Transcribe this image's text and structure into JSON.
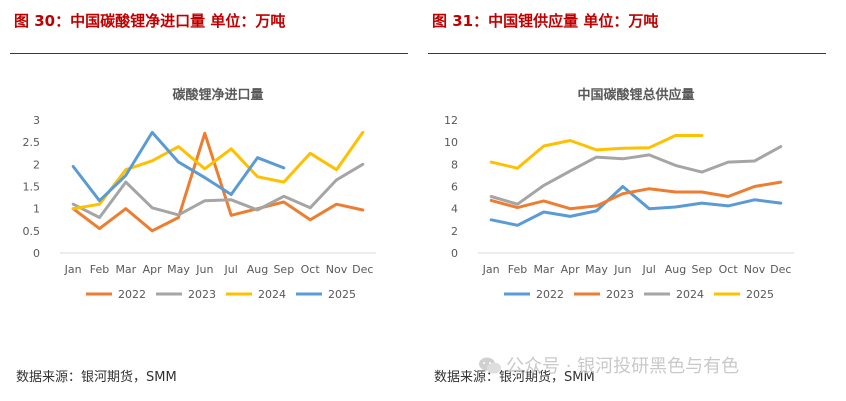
{
  "figures": {
    "left": {
      "title": "图 30：中国碳酸锂净进口量    单位：万吨",
      "source": "数据来源：银河期货，SMM"
    },
    "right": {
      "title": "图 31：中国锂供应量    单位：万吨",
      "source": "数据来源：银河期货，SMM"
    }
  },
  "watermark": {
    "text": "公众号 · 银河投研黑色与有色",
    "icon": "wechat-icon"
  },
  "colors": {
    "2022": "#5b9bd5",
    "2023": "#ed7d31",
    "2024": "#a5a5a5",
    "2025": "#ffc000",
    "title_red": "#c00000"
  },
  "chart_data": [
    {
      "type": "line",
      "title": "碳酸锂净进口量",
      "categories": [
        "Jan",
        "Feb",
        "Mar",
        "Apr",
        "May",
        "Jun",
        "Jul",
        "Aug",
        "Sep",
        "Oct",
        "Nov",
        "Dec"
      ],
      "ylim": [
        0,
        3
      ],
      "yticks": [
        "0",
        "0.5",
        "1",
        "1.5",
        "2",
        "2.5",
        "3"
      ],
      "legend_position": "bottom",
      "series": [
        {
          "name": "2022",
          "color": "#ed7d31",
          "values": [
            1.0,
            0.55,
            1.0,
            0.5,
            0.8,
            2.7,
            0.85,
            1.0,
            1.15,
            0.75,
            1.1,
            0.97
          ]
        },
        {
          "name": "2023",
          "color": "#a5a5a5",
          "values": [
            1.1,
            0.8,
            1.6,
            1.02,
            0.86,
            1.18,
            1.2,
            0.97,
            1.28,
            1.02,
            1.65,
            2.0
          ]
        },
        {
          "name": "2024",
          "color": "#ffc000",
          "values": [
            1.0,
            1.1,
            1.88,
            2.08,
            2.4,
            1.9,
            2.35,
            1.72,
            1.6,
            2.25,
            1.88,
            2.72
          ]
        },
        {
          "name": "2025",
          "color": "#5b9bd5",
          "values": [
            1.95,
            1.18,
            1.75,
            2.72,
            2.05,
            1.7,
            1.32,
            2.15,
            1.92,
            null,
            null,
            null
          ]
        }
      ]
    },
    {
      "type": "line",
      "title": "中国碳酸锂总供应量",
      "categories": [
        "Jan",
        "Feb",
        "Mar",
        "Apr",
        "May",
        "Jun",
        "Jul",
        "Aug",
        "Sep",
        "Oct",
        "Nov",
        "Dec"
      ],
      "ylim": [
        0,
        12
      ],
      "yticks": [
        "0",
        "2",
        "4",
        "6",
        "8",
        "10",
        "12"
      ],
      "legend_position": "bottom",
      "series": [
        {
          "name": "2022",
          "color": "#5b9bd5",
          "values": [
            3.0,
            2.5,
            3.7,
            3.3,
            3.8,
            6.0,
            4.0,
            4.15,
            4.5,
            4.25,
            4.8,
            4.5
          ]
        },
        {
          "name": "2023",
          "color": "#ed7d31",
          "values": [
            4.75,
            4.1,
            4.7,
            4.0,
            4.25,
            5.35,
            5.8,
            5.5,
            5.5,
            5.1,
            6.0,
            6.4
          ]
        },
        {
          "name": "2024",
          "color": "#a5a5a5",
          "values": [
            5.1,
            4.4,
            6.1,
            7.4,
            8.65,
            8.5,
            8.85,
            7.9,
            7.3,
            8.2,
            8.3,
            9.6
          ]
        },
        {
          "name": "2025",
          "color": "#ffc000",
          "values": [
            8.2,
            7.65,
            9.65,
            10.15,
            9.3,
            9.45,
            9.5,
            10.6,
            10.6,
            null,
            null,
            null
          ]
        }
      ]
    }
  ]
}
